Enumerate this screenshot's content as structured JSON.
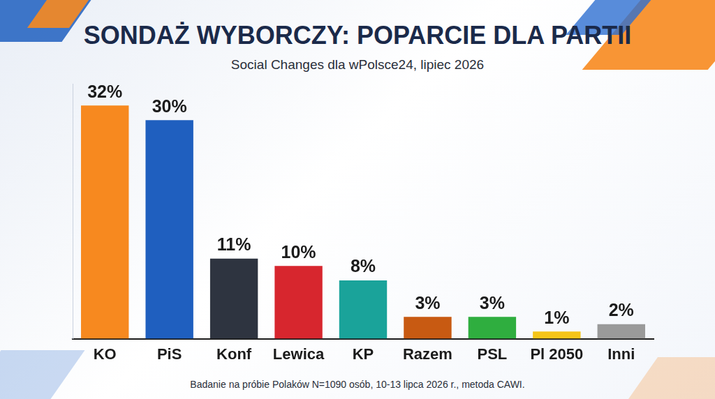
{
  "chart_data": {
    "type": "bar",
    "title": "SONDAŻ WYBORCZY: POPARCIE DLA PARTII",
    "subtitle": "Social Changes dla wPolsce24, lipiec 2026",
    "footnote": "Badanie na próbie Polaków N=1090 osób, 10-13 lipca 2026 r., metoda CAWI.",
    "categories": [
      "KO",
      "PiS",
      "Konf",
      "Lewica",
      "KP",
      "Razem",
      "PSL",
      "Pl 2050",
      "Inni"
    ],
    "values": [
      32,
      30,
      11,
      10,
      8,
      3,
      3,
      1,
      2
    ],
    "value_labels": [
      "32%",
      "30%",
      "11%",
      "10%",
      "8%",
      "3%",
      "3%",
      "1%",
      "2%"
    ],
    "colors": [
      "#f7891f",
      "#1f5fbf",
      "#2e3440",
      "#d7262e",
      "#1aa39a",
      "#c85a12",
      "#2fae3f",
      "#f5c518",
      "#9a9a9a"
    ],
    "ylim": [
      0,
      35
    ],
    "grid": false,
    "legend": false,
    "data_labels": true,
    "tick_labels": "x"
  }
}
